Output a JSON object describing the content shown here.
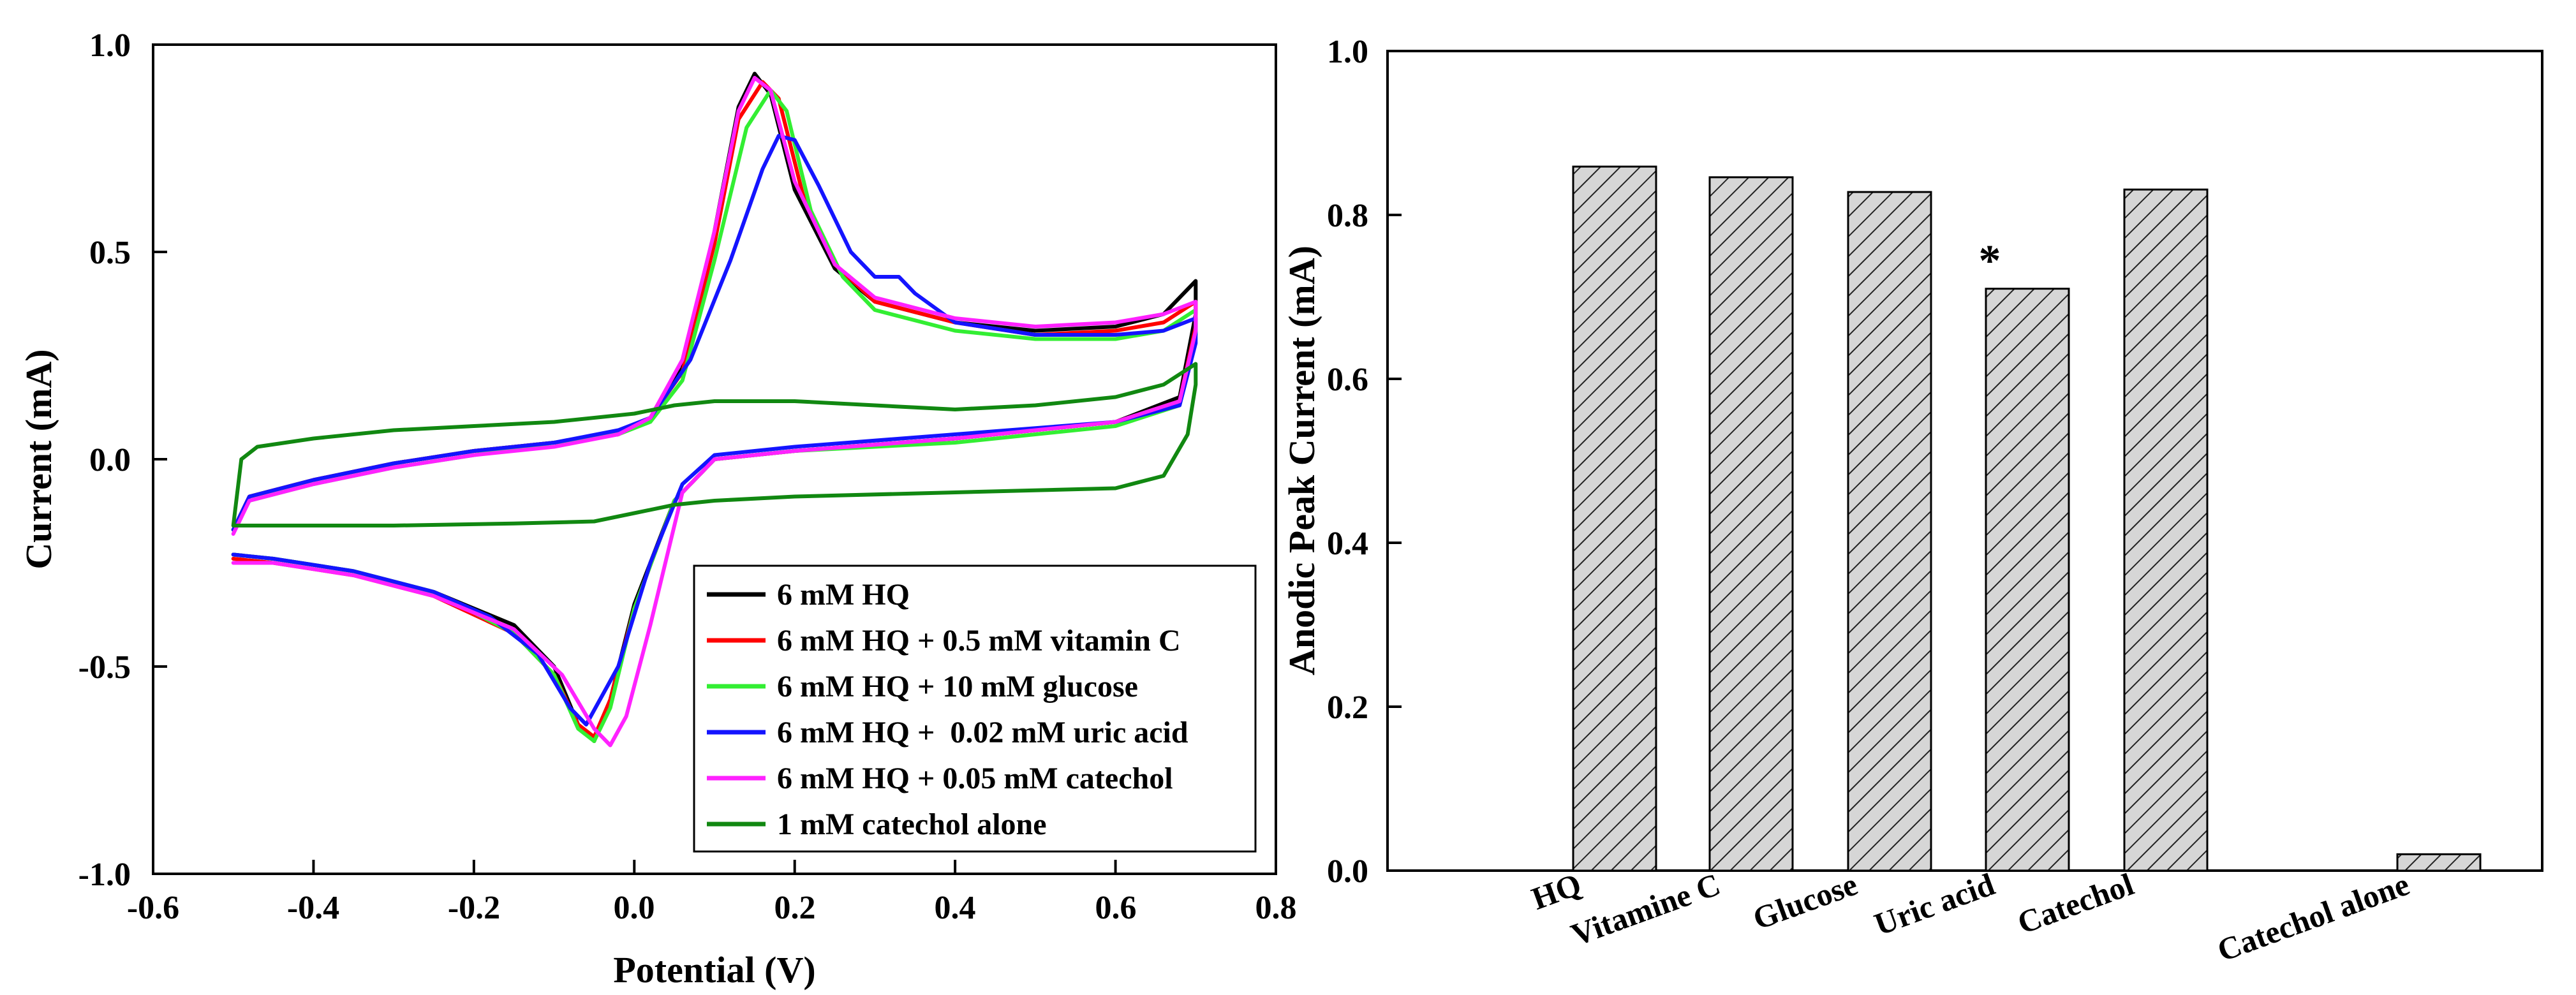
{
  "chart_data": [
    {
      "type": "line",
      "xlabel": "Potential (V)",
      "ylabel": "Current (mA)",
      "xlim": [
        -0.6,
        0.8
      ],
      "ylim": [
        -1.0,
        1.0
      ],
      "xticks": [
        "-0.6",
        "-0.4",
        "-0.2",
        "0.0",
        "0.2",
        "0.4",
        "0.6",
        "0.8"
      ],
      "yticks": [
        "-1.0",
        "-0.5",
        "0.0",
        "0.5",
        "1.0"
      ],
      "legend_position": "bottom-right",
      "series": [
        {
          "name": "6 mM HQ",
          "color": "#000000",
          "points": [
            [
              -0.5,
              -0.17
            ],
            [
              -0.48,
              -0.09
            ],
            [
              -0.4,
              -0.05
            ],
            [
              -0.3,
              -0.01
            ],
            [
              -0.2,
              0.02
            ],
            [
              -0.1,
              0.04
            ],
            [
              -0.02,
              0.06
            ],
            [
              0.02,
              0.1
            ],
            [
              0.06,
              0.22
            ],
            [
              0.1,
              0.55
            ],
            [
              0.13,
              0.85
            ],
            [
              0.15,
              0.93
            ],
            [
              0.17,
              0.88
            ],
            [
              0.2,
              0.65
            ],
            [
              0.25,
              0.46
            ],
            [
              0.3,
              0.38
            ],
            [
              0.4,
              0.33
            ],
            [
              0.5,
              0.31
            ],
            [
              0.6,
              0.32
            ],
            [
              0.66,
              0.35
            ],
            [
              0.7,
              0.43
            ],
            [
              0.7,
              0.35
            ],
            [
              0.68,
              0.15
            ],
            [
              0.6,
              0.09
            ],
            [
              0.4,
              0.05
            ],
            [
              0.2,
              0.02
            ],
            [
              0.1,
              0.0
            ],
            [
              0.05,
              -0.1
            ],
            [
              0.0,
              -0.35
            ],
            [
              -0.03,
              -0.58
            ],
            [
              -0.05,
              -0.68
            ],
            [
              -0.07,
              -0.64
            ],
            [
              -0.1,
              -0.5
            ],
            [
              -0.15,
              -0.4
            ],
            [
              -0.25,
              -0.32
            ],
            [
              -0.35,
              -0.27
            ],
            [
              -0.45,
              -0.24
            ],
            [
              -0.5,
              -0.23
            ]
          ]
        },
        {
          "name": "6 mM HQ + 0.5 mM vitamin C",
          "color": "#ff0000",
          "points": [
            [
              -0.5,
              -0.17
            ],
            [
              -0.48,
              -0.09
            ],
            [
              -0.4,
              -0.05
            ],
            [
              -0.3,
              -0.01
            ],
            [
              -0.2,
              0.02
            ],
            [
              -0.1,
              0.04
            ],
            [
              -0.02,
              0.06
            ],
            [
              0.02,
              0.1
            ],
            [
              0.06,
              0.21
            ],
            [
              0.1,
              0.52
            ],
            [
              0.13,
              0.82
            ],
            [
              0.16,
              0.91
            ],
            [
              0.18,
              0.87
            ],
            [
              0.21,
              0.64
            ],
            [
              0.25,
              0.47
            ],
            [
              0.3,
              0.38
            ],
            [
              0.4,
              0.33
            ],
            [
              0.5,
              0.3
            ],
            [
              0.6,
              0.31
            ],
            [
              0.66,
              0.33
            ],
            [
              0.7,
              0.38
            ],
            [
              0.7,
              0.32
            ],
            [
              0.68,
              0.14
            ],
            [
              0.6,
              0.09
            ],
            [
              0.4,
              0.05
            ],
            [
              0.2,
              0.02
            ],
            [
              0.1,
              0.0
            ],
            [
              0.05,
              -0.1
            ],
            [
              0.0,
              -0.36
            ],
            [
              -0.03,
              -0.58
            ],
            [
              -0.05,
              -0.67
            ],
            [
              -0.07,
              -0.64
            ],
            [
              -0.1,
              -0.52
            ],
            [
              -0.15,
              -0.42
            ],
            [
              -0.25,
              -0.33
            ],
            [
              -0.35,
              -0.28
            ],
            [
              -0.45,
              -0.25
            ],
            [
              -0.5,
              -0.24
            ]
          ]
        },
        {
          "name": "6 mM HQ + 10 mM glucose",
          "color": "#33ee33",
          "points": [
            [
              -0.5,
              -0.17
            ],
            [
              -0.48,
              -0.1
            ],
            [
              -0.4,
              -0.06
            ],
            [
              -0.3,
              -0.02
            ],
            [
              -0.2,
              0.01
            ],
            [
              -0.1,
              0.04
            ],
            [
              -0.02,
              0.06
            ],
            [
              0.02,
              0.09
            ],
            [
              0.06,
              0.19
            ],
            [
              0.1,
              0.48
            ],
            [
              0.14,
              0.8
            ],
            [
              0.17,
              0.89
            ],
            [
              0.19,
              0.84
            ],
            [
              0.22,
              0.6
            ],
            [
              0.26,
              0.44
            ],
            [
              0.3,
              0.36
            ],
            [
              0.4,
              0.31
            ],
            [
              0.5,
              0.29
            ],
            [
              0.6,
              0.29
            ],
            [
              0.66,
              0.31
            ],
            [
              0.7,
              0.36
            ],
            [
              0.7,
              0.3
            ],
            [
              0.68,
              0.13
            ],
            [
              0.6,
              0.08
            ],
            [
              0.4,
              0.04
            ],
            [
              0.2,
              0.02
            ],
            [
              0.1,
              0.0
            ],
            [
              0.05,
              -0.1
            ],
            [
              0.0,
              -0.36
            ],
            [
              -0.03,
              -0.6
            ],
            [
              -0.05,
              -0.68
            ],
            [
              -0.07,
              -0.65
            ],
            [
              -0.1,
              -0.52
            ],
            [
              -0.15,
              -0.42
            ],
            [
              -0.25,
              -0.32
            ],
            [
              -0.35,
              -0.27
            ],
            [
              -0.45,
              -0.24
            ],
            [
              -0.5,
              -0.23
            ]
          ]
        },
        {
          "name": "6 mM HQ +  0.02 mM uric acid",
          "color": "#1414ff",
          "points": [
            [
              -0.5,
              -0.17
            ],
            [
              -0.48,
              -0.09
            ],
            [
              -0.4,
              -0.05
            ],
            [
              -0.3,
              -0.01
            ],
            [
              -0.2,
              0.02
            ],
            [
              -0.1,
              0.04
            ],
            [
              -0.02,
              0.07
            ],
            [
              0.02,
              0.1
            ],
            [
              0.07,
              0.24
            ],
            [
              0.12,
              0.48
            ],
            [
              0.16,
              0.7
            ],
            [
              0.18,
              0.78
            ],
            [
              0.2,
              0.77
            ],
            [
              0.23,
              0.66
            ],
            [
              0.27,
              0.5
            ],
            [
              0.3,
              0.44
            ],
            [
              0.33,
              0.44
            ],
            [
              0.35,
              0.4
            ],
            [
              0.4,
              0.33
            ],
            [
              0.5,
              0.3
            ],
            [
              0.6,
              0.3
            ],
            [
              0.66,
              0.31
            ],
            [
              0.7,
              0.34
            ],
            [
              0.7,
              0.28
            ],
            [
              0.68,
              0.13
            ],
            [
              0.6,
              0.09
            ],
            [
              0.4,
              0.06
            ],
            [
              0.2,
              0.03
            ],
            [
              0.1,
              0.01
            ],
            [
              0.06,
              -0.06
            ],
            [
              0.02,
              -0.25
            ],
            [
              -0.02,
              -0.5
            ],
            [
              -0.06,
              -0.64
            ],
            [
              -0.08,
              -0.6
            ],
            [
              -0.12,
              -0.47
            ],
            [
              -0.18,
              -0.38
            ],
            [
              -0.25,
              -0.32
            ],
            [
              -0.35,
              -0.27
            ],
            [
              -0.45,
              -0.24
            ],
            [
              -0.5,
              -0.23
            ]
          ]
        },
        {
          "name": "6 mM HQ + 0.05 mM catechol",
          "color": "#ff22ff",
          "points": [
            [
              -0.5,
              -0.18
            ],
            [
              -0.48,
              -0.1
            ],
            [
              -0.4,
              -0.06
            ],
            [
              -0.3,
              -0.02
            ],
            [
              -0.2,
              0.01
            ],
            [
              -0.1,
              0.03
            ],
            [
              -0.02,
              0.06
            ],
            [
              0.02,
              0.1
            ],
            [
              0.06,
              0.24
            ],
            [
              0.1,
              0.55
            ],
            [
              0.13,
              0.84
            ],
            [
              0.15,
              0.92
            ],
            [
              0.17,
              0.89
            ],
            [
              0.2,
              0.67
            ],
            [
              0.25,
              0.47
            ],
            [
              0.3,
              0.39
            ],
            [
              0.4,
              0.34
            ],
            [
              0.5,
              0.32
            ],
            [
              0.6,
              0.33
            ],
            [
              0.66,
              0.35
            ],
            [
              0.7,
              0.38
            ],
            [
              0.7,
              0.31
            ],
            [
              0.68,
              0.14
            ],
            [
              0.6,
              0.09
            ],
            [
              0.4,
              0.05
            ],
            [
              0.2,
              0.02
            ],
            [
              0.1,
              0.0
            ],
            [
              0.06,
              -0.08
            ],
            [
              0.02,
              -0.4
            ],
            [
              -0.01,
              -0.62
            ],
            [
              -0.03,
              -0.69
            ],
            [
              -0.05,
              -0.65
            ],
            [
              -0.09,
              -0.52
            ],
            [
              -0.15,
              -0.41
            ],
            [
              -0.25,
              -0.33
            ],
            [
              -0.35,
              -0.28
            ],
            [
              -0.45,
              -0.25
            ],
            [
              -0.5,
              -0.25
            ]
          ]
        },
        {
          "name": "1 mM catechol alone",
          "color": "#118811",
          "points": [
            [
              -0.5,
              -0.16
            ],
            [
              -0.49,
              0.0
            ],
            [
              -0.47,
              0.03
            ],
            [
              -0.4,
              0.05
            ],
            [
              -0.3,
              0.07
            ],
            [
              -0.2,
              0.08
            ],
            [
              -0.1,
              0.09
            ],
            [
              0.0,
              0.11
            ],
            [
              0.05,
              0.13
            ],
            [
              0.1,
              0.14
            ],
            [
              0.2,
              0.14
            ],
            [
              0.3,
              0.13
            ],
            [
              0.4,
              0.12
            ],
            [
              0.5,
              0.13
            ],
            [
              0.6,
              0.15
            ],
            [
              0.66,
              0.18
            ],
            [
              0.7,
              0.23
            ],
            [
              0.7,
              0.18
            ],
            [
              0.69,
              0.06
            ],
            [
              0.66,
              -0.04
            ],
            [
              0.6,
              -0.07
            ],
            [
              0.4,
              -0.08
            ],
            [
              0.2,
              -0.09
            ],
            [
              0.1,
              -0.1
            ],
            [
              0.05,
              -0.11
            ],
            [
              0.0,
              -0.13
            ],
            [
              -0.05,
              -0.15
            ],
            [
              -0.15,
              -0.155
            ],
            [
              -0.3,
              -0.16
            ],
            [
              -0.45,
              -0.16
            ],
            [
              -0.5,
              -0.16
            ]
          ]
        }
      ]
    },
    {
      "type": "bar",
      "ylabel": "Anodic Peak Current (mA)",
      "xlabel": "",
      "ylim": [
        0.0,
        1.0
      ],
      "yticks": [
        "0.0",
        "0.2",
        "0.4",
        "0.6",
        "0.8",
        "1.0"
      ],
      "categories": [
        "HQ",
        "Vitamine C",
        "Glucose",
        "Uric acid",
        "Catechol",
        "Catechol alone"
      ],
      "values": [
        0.859,
        0.846,
        0.828,
        0.71,
        0.831,
        0.02
      ],
      "annotations": [
        {
          "category": "Uric acid",
          "text": "*"
        }
      ],
      "bar_fill": "hatched grey"
    }
  ]
}
